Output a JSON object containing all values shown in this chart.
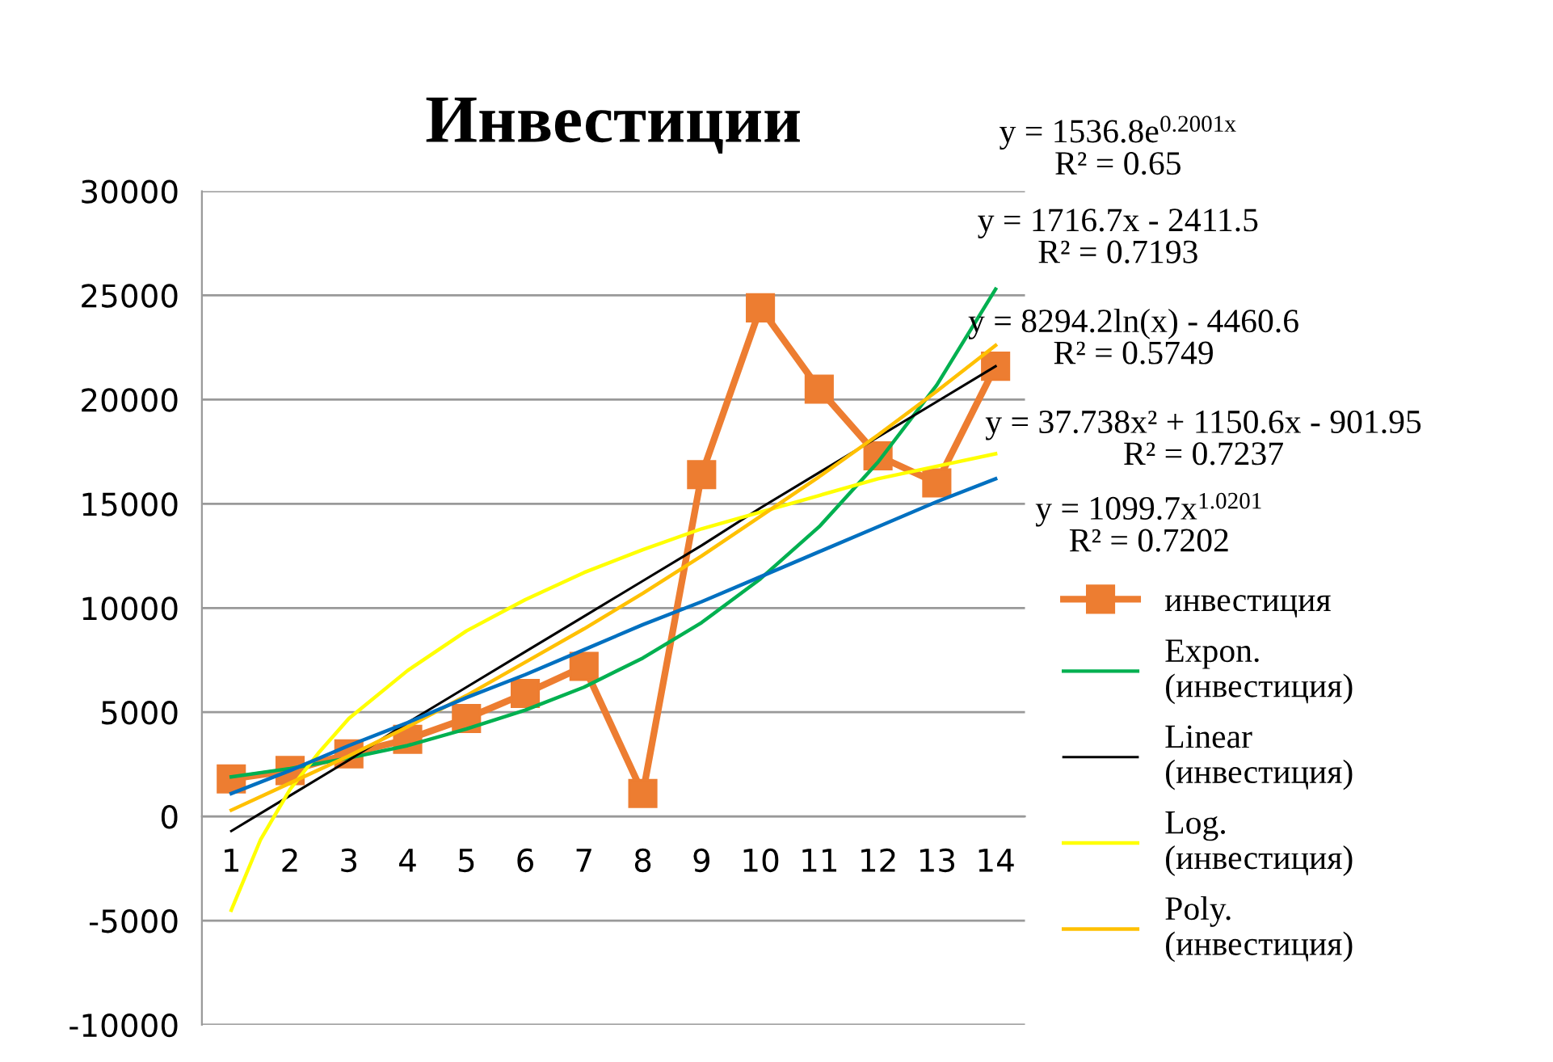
{
  "chart_data": {
    "type": "line",
    "title": "Инвестиции",
    "x": [
      1,
      2,
      3,
      4,
      5,
      6,
      7,
      8,
      9,
      10,
      11,
      12,
      13,
      14
    ],
    "xlim": [
      0.5,
      14.5
    ],
    "xticks": [
      1,
      2,
      3,
      4,
      5,
      6,
      7,
      8,
      9,
      10,
      11,
      12,
      13,
      14
    ],
    "ylim": [
      -10000,
      30000
    ],
    "yticks": [
      -10000,
      -5000,
      0,
      5000,
      10000,
      15000,
      20000,
      25000,
      30000
    ],
    "grid": "y",
    "legend": "right",
    "series": [
      {
        "name": "инвестиция",
        "color": "#ed7d31",
        "marker": "square",
        "values": [
          1800,
          2200,
          3000,
          3700,
          4700,
          5900,
          7200,
          1100,
          16400,
          24400,
          20500,
          17300,
          16000,
          21600
        ]
      },
      {
        "name": "Expon.\n(инвестиция)",
        "color": "#00b050",
        "marker": "none",
        "values": [
          1900,
          2300,
          2800,
          3400,
          4200,
          5100,
          6200,
          7600,
          9300,
          11400,
          13900,
          17000,
          20700,
          25300
        ]
      },
      {
        "name": "Linear\n(инвестиция)",
        "color": "#000000",
        "marker": "none",
        "values": [
          -700,
          1000,
          2700,
          4500,
          6200,
          7900,
          9600,
          11300,
          13000,
          14800,
          16500,
          18200,
          19900,
          21600
        ]
      },
      {
        "name": "Log.\n(инвестиция)",
        "color": "#ffff00",
        "marker": "none",
        "x": [
          1,
          1.5,
          2,
          2.5,
          3,
          4,
          5,
          6,
          7,
          8,
          9,
          10,
          11,
          12,
          13,
          14
        ],
        "values": [
          -4500,
          -1100,
          1300,
          3100,
          4700,
          7000,
          8900,
          10400,
          11700,
          12800,
          13800,
          14600,
          15400,
          16200,
          16800,
          17400
        ]
      },
      {
        "name": "Poly.\n(инвестиция)",
        "color": "#ffc000",
        "marker": "none",
        "values": [
          300,
          1600,
          2900,
          4300,
          5800,
          7400,
          9000,
          10700,
          12500,
          14400,
          16300,
          18300,
          20400,
          22600
        ]
      },
      {
        "color": "#0070c0",
        "marker": "none",
        "values": [
          1100,
          2200,
          3400,
          4500,
          5700,
          6800,
          8000,
          9200,
          10300,
          11500,
          12700,
          13900,
          15100,
          16200
        ]
      }
    ],
    "annotations": [
      "y = 1536.8e$^{0.2001x}$\nR² = 0.65",
      "y = 1716.7x - 2411.5\nR² = 0.7193",
      "y = 8294.2ln(x) - 4460.6\nR² = 0.5749",
      "y = 37.738x² + 1150.6x - 901.95\nR² = 0.7237",
      "y = 1099.7x$^{1.0201}$\nR² = 0.7202"
    ]
  }
}
